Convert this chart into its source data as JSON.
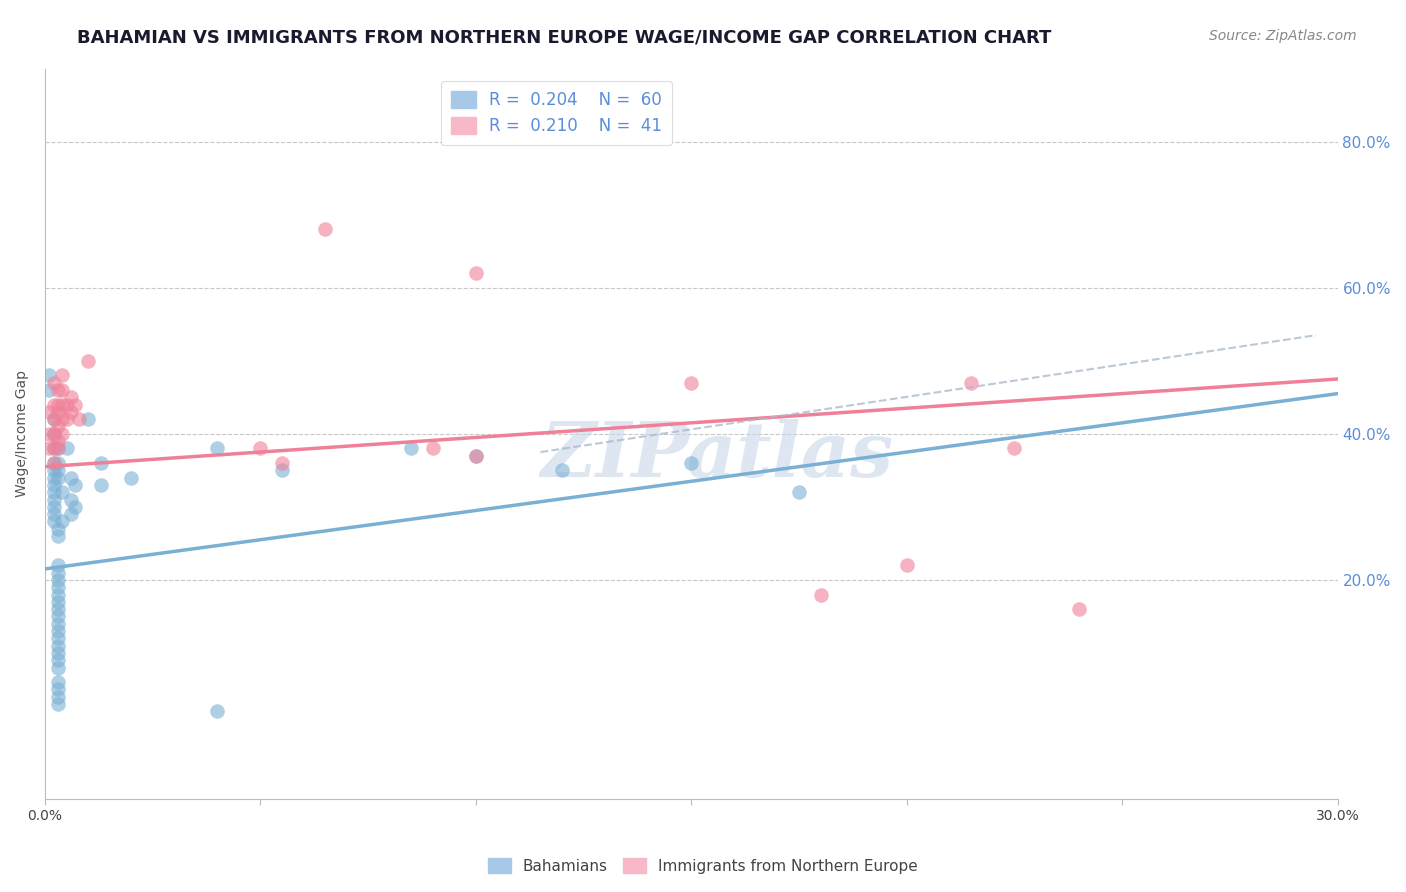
{
  "title": "BAHAMIAN VS IMMIGRANTS FROM NORTHERN EUROPE WAGE/INCOME GAP CORRELATION CHART",
  "source": "Source: ZipAtlas.com",
  "ylabel": "Wage/Income Gap",
  "watermark": "ZIPatlas",
  "xlim": [
    0.0,
    0.3
  ],
  "ylim": [
    -0.1,
    0.9
  ],
  "yticks": [
    0.2,
    0.4,
    0.6,
    0.8
  ],
  "ytick_labels": [
    "20.0%",
    "40.0%",
    "60.0%",
    "80.0%"
  ],
  "xticks": [
    0.0,
    0.05,
    0.1,
    0.15,
    0.2,
    0.25,
    0.3
  ],
  "xtick_labels": [
    "0.0%",
    "",
    "",
    "",
    "",
    "",
    "30.0%"
  ],
  "grid_color": "#c8c8c8",
  "background_color": "#ffffff",
  "blue_color": "#7ab0d4",
  "pink_color": "#f08098",
  "blue_scatter": [
    [
      0.001,
      0.48
    ],
    [
      0.001,
      0.46
    ],
    [
      0.002,
      0.42
    ],
    [
      0.002,
      0.4
    ],
    [
      0.002,
      0.38
    ],
    [
      0.002,
      0.36
    ],
    [
      0.002,
      0.35
    ],
    [
      0.002,
      0.34
    ],
    [
      0.002,
      0.33
    ],
    [
      0.002,
      0.32
    ],
    [
      0.002,
      0.31
    ],
    [
      0.002,
      0.3
    ],
    [
      0.002,
      0.29
    ],
    [
      0.002,
      0.28
    ],
    [
      0.003,
      0.38
    ],
    [
      0.003,
      0.36
    ],
    [
      0.003,
      0.35
    ],
    [
      0.003,
      0.34
    ],
    [
      0.003,
      0.27
    ],
    [
      0.003,
      0.26
    ],
    [
      0.003,
      0.22
    ],
    [
      0.003,
      0.21
    ],
    [
      0.003,
      0.2
    ],
    [
      0.003,
      0.19
    ],
    [
      0.003,
      0.18
    ],
    [
      0.003,
      0.17
    ],
    [
      0.003,
      0.16
    ],
    [
      0.003,
      0.15
    ],
    [
      0.003,
      0.14
    ],
    [
      0.003,
      0.13
    ],
    [
      0.003,
      0.12
    ],
    [
      0.003,
      0.11
    ],
    [
      0.003,
      0.1
    ],
    [
      0.003,
      0.09
    ],
    [
      0.003,
      0.08
    ],
    [
      0.003,
      0.06
    ],
    [
      0.003,
      0.05
    ],
    [
      0.003,
      0.04
    ],
    [
      0.003,
      0.03
    ],
    [
      0.004,
      0.32
    ],
    [
      0.004,
      0.28
    ],
    [
      0.005,
      0.38
    ],
    [
      0.006,
      0.34
    ],
    [
      0.006,
      0.31
    ],
    [
      0.006,
      0.29
    ],
    [
      0.007,
      0.33
    ],
    [
      0.007,
      0.3
    ],
    [
      0.01,
      0.42
    ],
    [
      0.013,
      0.36
    ],
    [
      0.013,
      0.33
    ],
    [
      0.02,
      0.34
    ],
    [
      0.04,
      0.38
    ],
    [
      0.055,
      0.35
    ],
    [
      0.085,
      0.38
    ],
    [
      0.1,
      0.37
    ],
    [
      0.12,
      0.35
    ],
    [
      0.15,
      0.36
    ],
    [
      0.175,
      0.32
    ],
    [
      0.04,
      0.02
    ]
  ],
  "pink_scatter": [
    [
      0.001,
      0.43
    ],
    [
      0.001,
      0.4
    ],
    [
      0.001,
      0.38
    ],
    [
      0.002,
      0.47
    ],
    [
      0.002,
      0.44
    ],
    [
      0.002,
      0.42
    ],
    [
      0.002,
      0.4
    ],
    [
      0.002,
      0.38
    ],
    [
      0.002,
      0.36
    ],
    [
      0.003,
      0.46
    ],
    [
      0.003,
      0.44
    ],
    [
      0.003,
      0.43
    ],
    [
      0.003,
      0.41
    ],
    [
      0.003,
      0.39
    ],
    [
      0.003,
      0.38
    ],
    [
      0.004,
      0.48
    ],
    [
      0.004,
      0.46
    ],
    [
      0.004,
      0.44
    ],
    [
      0.004,
      0.42
    ],
    [
      0.004,
      0.4
    ],
    [
      0.005,
      0.44
    ],
    [
      0.005,
      0.42
    ],
    [
      0.006,
      0.45
    ],
    [
      0.006,
      0.43
    ],
    [
      0.007,
      0.44
    ],
    [
      0.008,
      0.42
    ],
    [
      0.01,
      0.5
    ],
    [
      0.05,
      0.38
    ],
    [
      0.055,
      0.36
    ],
    [
      0.09,
      0.38
    ],
    [
      0.1,
      0.37
    ],
    [
      0.065,
      0.68
    ],
    [
      0.1,
      0.62
    ],
    [
      0.15,
      0.47
    ],
    [
      0.215,
      0.47
    ],
    [
      0.225,
      0.38
    ],
    [
      0.2,
      0.22
    ],
    [
      0.18,
      0.18
    ],
    [
      0.24,
      0.16
    ]
  ],
  "blue_line": {
    "x0": 0.0,
    "y0": 0.215,
    "x1": 0.3,
    "y1": 0.455
  },
  "pink_line": {
    "x0": 0.0,
    "y0": 0.355,
    "x1": 0.3,
    "y1": 0.475
  },
  "dashed_line": {
    "x0": 0.115,
    "y0": 0.375,
    "x1": 0.295,
    "y1": 0.535
  },
  "title_fontsize": 13,
  "source_fontsize": 10,
  "axis_label_fontsize": 10,
  "tick_fontsize": 10,
  "legend_fontsize": 12,
  "watermark_fontsize": 55,
  "watermark_color": "#c8d8e8",
  "watermark_alpha": 0.6
}
